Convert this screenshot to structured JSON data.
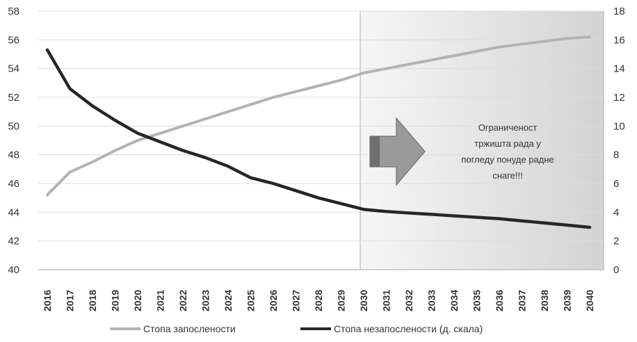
{
  "chart_data": {
    "type": "line",
    "x": [
      "2016",
      "2017",
      "2018",
      "2019",
      "2020",
      "2021",
      "2022",
      "2023",
      "2024",
      "2025",
      "2026",
      "2027",
      "2028",
      "2029",
      "2030",
      "2031",
      "2032",
      "2033",
      "2034",
      "2035",
      "2036",
      "2037",
      "2038",
      "2039",
      "2040"
    ],
    "series": [
      {
        "name": "Стопа запослености",
        "axis": "left",
        "color": "#b3b3b3",
        "values": [
          45.2,
          46.8,
          47.5,
          48.3,
          49.0,
          49.5,
          50.0,
          50.5,
          51.0,
          51.5,
          52.0,
          52.4,
          52.8,
          53.2,
          53.7,
          54.0,
          54.3,
          54.6,
          54.9,
          55.2,
          55.5,
          55.7,
          55.9,
          56.1,
          56.2
        ]
      },
      {
        "name": "Стопа незапослености (д. скала)",
        "axis": "right",
        "color": "#262626",
        "values": [
          15.3,
          12.6,
          11.4,
          10.4,
          9.5,
          8.9,
          8.3,
          7.8,
          7.2,
          6.4,
          6.0,
          5.5,
          5.0,
          4.6,
          4.2,
          4.05,
          3.95,
          3.85,
          3.75,
          3.65,
          3.55,
          3.4,
          3.25,
          3.1,
          2.95
        ]
      }
    ],
    "y_left": {
      "min": 40,
      "max": 58,
      "ticks": [
        "40",
        "42",
        "44",
        "46",
        "48",
        "50",
        "52",
        "54",
        "56",
        "58"
      ]
    },
    "y_right": {
      "min": 0,
      "max": 18,
      "ticks": [
        "0",
        "2",
        "4",
        "6",
        "8",
        "10",
        "12",
        "14",
        "16",
        "18"
      ]
    },
    "grid": true,
    "legend_position": "bottom",
    "shaded_region": {
      "from": "2030",
      "to": "2040"
    },
    "annotation": {
      "lines": [
        "Ограниченост",
        "тржишта рада у",
        "погледу понуде радне",
        "снаге!!!"
      ]
    }
  }
}
